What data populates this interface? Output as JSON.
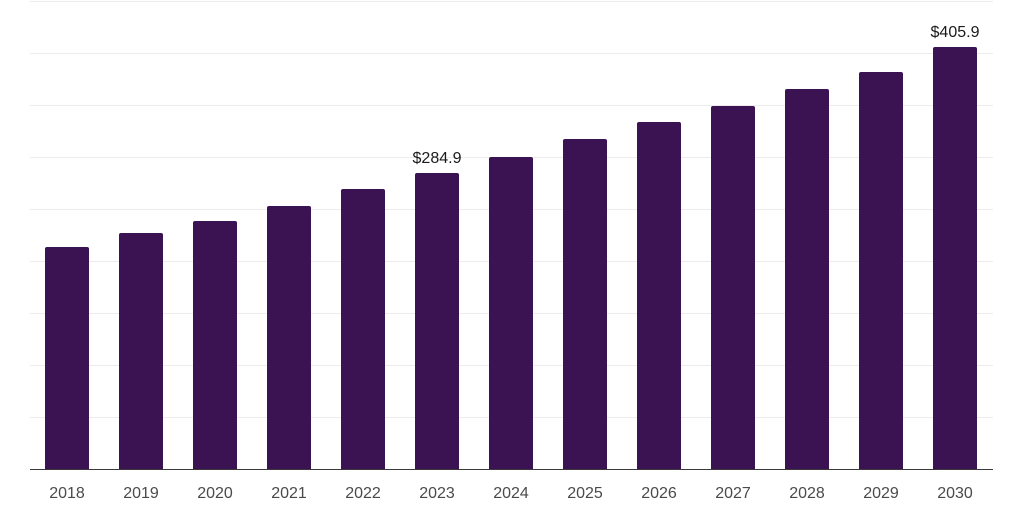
{
  "chart_data": {
    "type": "bar",
    "title": "",
    "xlabel": "",
    "ylabel": "",
    "categories": [
      "2018",
      "2019",
      "2020",
      "2021",
      "2022",
      "2023",
      "2024",
      "2025",
      "2026",
      "2027",
      "2028",
      "2029",
      "2030"
    ],
    "values": [
      213.6,
      227.0,
      238.6,
      253.0,
      269.3,
      284.9,
      300.1,
      317.4,
      333.8,
      349.2,
      365.5,
      381.9,
      405.9
    ],
    "data_labels": [
      "",
      "",
      "",
      "",
      "",
      "$284.9",
      "",
      "",
      "",
      "",
      "",
      "",
      "$405.9"
    ],
    "value_prefix": "$",
    "ylim": [
      0,
      450
    ],
    "grid_step": 50,
    "grid": true,
    "legend_position": "none",
    "colors": {
      "bar": "#3b1252",
      "gridline": "#ececec",
      "axis_line": "#3a3a3a",
      "x_tick_label": "#4a4a4a",
      "data_label": "#1a1a1a",
      "background": "#ffffff"
    }
  }
}
